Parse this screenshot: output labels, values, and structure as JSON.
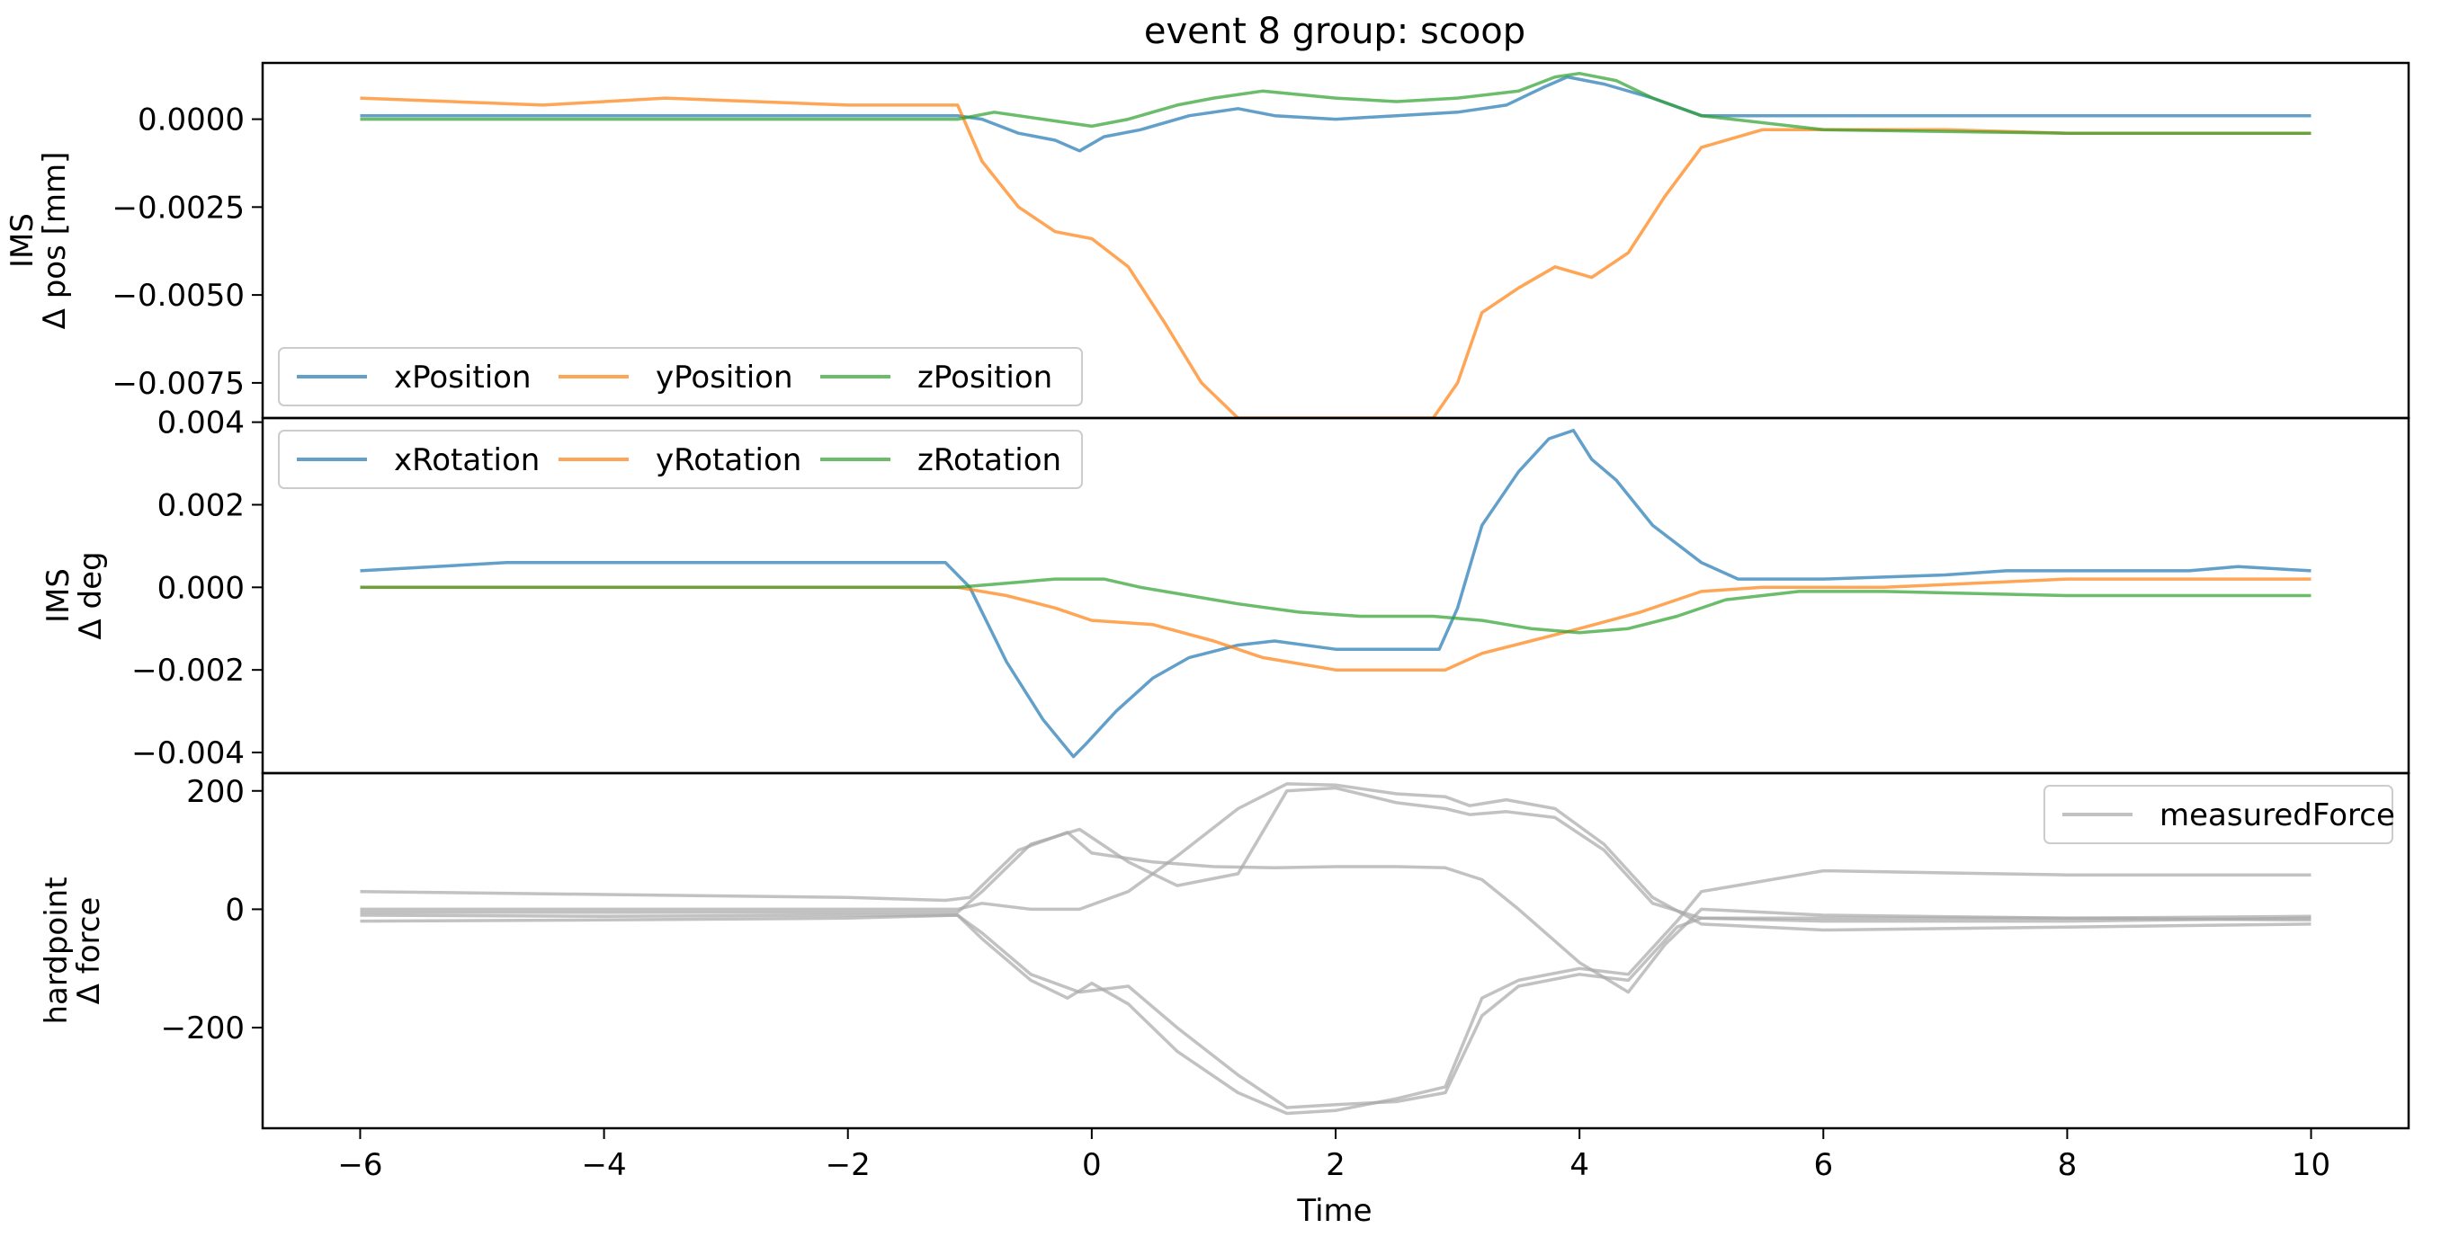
{
  "figure_title": "event 8 group: scoop",
  "chart_data": [
    {
      "type": "line",
      "id": "ims-position",
      "ylabel_lines": [
        "IMS",
        "Δ pos [mm]"
      ],
      "xlabel": "",
      "xlim": [
        -6.8,
        10.8
      ],
      "ylim": [
        -0.0085,
        0.0016
      ],
      "yticks": [
        0.0,
        -0.0025,
        -0.005,
        -0.0075
      ],
      "ytick_labels": [
        "0.0000",
        "−0.0025",
        "−0.0050",
        "−0.0075"
      ],
      "grid": false,
      "legend": {
        "position": "lower-left",
        "columns": 3
      },
      "series": [
        {
          "name": "xPosition",
          "color": "#1f77b4",
          "x": [
            -6,
            -1.1,
            -0.9,
            -0.6,
            -0.3,
            -0.1,
            0.1,
            0.4,
            0.8,
            1.2,
            1.5,
            2.0,
            2.5,
            3.0,
            3.4,
            3.7,
            3.9,
            4.2,
            4.6,
            5.0,
            6.0,
            8.0,
            10.0
          ],
          "y": [
            0.0001,
            0.0001,
            0.0,
            -0.0004,
            -0.0006,
            -0.0009,
            -0.0005,
            -0.0003,
            0.0001,
            0.0003,
            0.0001,
            0.0,
            0.0001,
            0.0002,
            0.0004,
            0.0009,
            0.0012,
            0.001,
            0.0006,
            0.0001,
            0.0001,
            0.0001,
            0.0001
          ]
        },
        {
          "name": "yPosition",
          "color": "#ff7f0e",
          "x": [
            -6,
            -4.5,
            -3.5,
            -2.0,
            -1.1,
            -0.9,
            -0.6,
            -0.3,
            0.0,
            0.3,
            0.6,
            0.9,
            1.2,
            1.5,
            2.0,
            2.5,
            2.8,
            3.0,
            3.2,
            3.5,
            3.8,
            4.1,
            4.4,
            4.7,
            5.0,
            5.5,
            6.0,
            7.0,
            8.0,
            10.0
          ],
          "y": [
            0.0006,
            0.0004,
            0.0006,
            0.0004,
            0.0004,
            -0.0012,
            -0.0025,
            -0.0032,
            -0.0034,
            -0.0042,
            -0.0058,
            -0.0075,
            -0.0085,
            -0.0085,
            -0.0085,
            -0.0085,
            -0.0085,
            -0.0075,
            -0.0055,
            -0.0048,
            -0.0042,
            -0.0045,
            -0.0038,
            -0.0022,
            -0.0008,
            -0.0003,
            -0.0003,
            -0.0003,
            -0.0004,
            -0.0004
          ]
        },
        {
          "name": "zPosition",
          "color": "#2ca02c",
          "x": [
            -6,
            -3.0,
            -1.1,
            -0.8,
            -0.4,
            0.0,
            0.3,
            0.7,
            1.0,
            1.4,
            2.0,
            2.5,
            3.0,
            3.5,
            3.8,
            4.0,
            4.3,
            4.6,
            5.0,
            6.0,
            8.0,
            10.0
          ],
          "y": [
            0.0,
            0.0,
            0.0,
            0.0002,
            0.0,
            -0.0002,
            0.0,
            0.0004,
            0.0006,
            0.0008,
            0.0006,
            0.0005,
            0.0006,
            0.0008,
            0.0012,
            0.0013,
            0.0011,
            0.0006,
            0.0001,
            -0.0003,
            -0.0004,
            -0.0004
          ]
        }
      ]
    },
    {
      "type": "line",
      "id": "ims-rotation",
      "ylabel_lines": [
        "IMS",
        "Δ deg"
      ],
      "xlabel": "",
      "xlim": [
        -6.8,
        10.8
      ],
      "ylim": [
        -0.0045,
        0.0041
      ],
      "yticks": [
        0.004,
        0.002,
        0.0,
        -0.002,
        -0.004
      ],
      "ytick_labels": [
        "0.004",
        "0.002",
        "0.000",
        "−0.002",
        "−0.004"
      ],
      "grid": false,
      "legend": {
        "position": "upper-left",
        "columns": 3
      },
      "series": [
        {
          "name": "xRotation",
          "color": "#1f77b4",
          "x": [
            -6,
            -4.8,
            -2.8,
            -1.2,
            -1.0,
            -0.7,
            -0.4,
            -0.15,
            -0.05,
            0.2,
            0.5,
            0.8,
            1.2,
            1.5,
            2.0,
            2.5,
            2.85,
            3.0,
            3.2,
            3.5,
            3.75,
            3.95,
            4.1,
            4.3,
            4.6,
            5.0,
            5.3,
            6.0,
            7.0,
            7.5,
            9.0,
            9.4,
            10.0
          ],
          "y": [
            0.0004,
            0.0006,
            0.0006,
            0.0006,
            0.0,
            -0.0018,
            -0.0032,
            -0.0041,
            -0.0038,
            -0.003,
            -0.0022,
            -0.0017,
            -0.0014,
            -0.0013,
            -0.0015,
            -0.0015,
            -0.0015,
            -0.0005,
            0.0015,
            0.0028,
            0.0036,
            0.0038,
            0.0031,
            0.0026,
            0.0015,
            0.0006,
            0.0002,
            0.0002,
            0.0003,
            0.0004,
            0.0004,
            0.0005,
            0.0004
          ]
        },
        {
          "name": "yRotation",
          "color": "#ff7f0e",
          "x": [
            -6,
            -2.0,
            -1.1,
            -0.7,
            -0.3,
            0.0,
            0.5,
            1.0,
            1.4,
            2.0,
            2.5,
            2.9,
            3.2,
            3.6,
            4.0,
            4.5,
            5.0,
            5.5,
            6.5,
            8.0,
            10.0
          ],
          "y": [
            0.0,
            0.0,
            0.0,
            -0.0002,
            -0.0005,
            -0.0008,
            -0.0009,
            -0.0013,
            -0.0017,
            -0.002,
            -0.002,
            -0.002,
            -0.0016,
            -0.0013,
            -0.001,
            -0.0006,
            -0.0001,
            0.0,
            0.0,
            0.0002,
            0.0002
          ]
        },
        {
          "name": "zRotation",
          "color": "#2ca02c",
          "x": [
            -6,
            -1.1,
            -0.7,
            -0.3,
            0.1,
            0.4,
            0.8,
            1.2,
            1.7,
            2.2,
            2.8,
            3.2,
            3.6,
            4.0,
            4.4,
            4.8,
            5.2,
            5.8,
            6.5,
            8.0,
            10.0
          ],
          "y": [
            0.0,
            0.0,
            0.0001,
            0.0002,
            0.0002,
            0.0,
            -0.0002,
            -0.0004,
            -0.0006,
            -0.0007,
            -0.0007,
            -0.0008,
            -0.001,
            -0.0011,
            -0.001,
            -0.0007,
            -0.0003,
            -0.0001,
            -0.0001,
            -0.0002,
            -0.0002
          ]
        }
      ]
    },
    {
      "type": "line",
      "id": "hardpoint-force",
      "ylabel_lines": [
        "hardpoint",
        "Δ force"
      ],
      "xlabel": "Time",
      "xlim": [
        -6.8,
        10.8
      ],
      "ylim": [
        -370,
        230
      ],
      "yticks": [
        200,
        0,
        -200
      ],
      "ytick_labels": [
        "200",
        "0",
        "−200"
      ],
      "xticks": [
        -6,
        -4,
        -2,
        0,
        2,
        4,
        6,
        8,
        10
      ],
      "xtick_labels": [
        "−6",
        "−4",
        "−2",
        "0",
        "2",
        "4",
        "6",
        "8",
        "10"
      ],
      "grid": false,
      "legend": {
        "position": "upper-right",
        "columns": 1,
        "entries": [
          "measuredForce"
        ]
      },
      "series": [
        {
          "name": "measuredForce",
          "color": "#a8a8a8",
          "x": [
            -6,
            -4,
            -2,
            -1.2,
            -1.0,
            -0.6,
            -0.2,
            0.0,
            0.5,
            1.0,
            1.5,
            2.0,
            2.5,
            2.9,
            3.2,
            3.5,
            4.0,
            4.4,
            4.7,
            5.0,
            6.0,
            8.0,
            10.0
          ],
          "y": [
            30,
            25,
            20,
            15,
            20,
            100,
            130,
            95,
            80,
            72,
            70,
            72,
            72,
            70,
            50,
            0,
            -90,
            -140,
            -60,
            0,
            -10,
            -15,
            -18
          ]
        },
        {
          "name": "",
          "color": "#a8a8a8",
          "x": [
            -6,
            -4,
            -2,
            -1.1,
            -0.9,
            -0.5,
            -0.1,
            0.3,
            0.7,
            1.2,
            1.6,
            2.0,
            2.5,
            2.9,
            3.1,
            3.4,
            3.8,
            4.2,
            4.6,
            5.0,
            6.0,
            8.0,
            10.0
          ],
          "y": [
            0,
            0,
            0,
            0,
            10,
            0,
            0,
            30,
            90,
            170,
            212,
            210,
            195,
            190,
            175,
            185,
            170,
            110,
            20,
            -25,
            -35,
            -30,
            -25
          ]
        },
        {
          "name": "",
          "color": "#a8a8a8",
          "x": [
            -6,
            -4,
            -2,
            -1.1,
            -0.9,
            -0.5,
            -0.2,
            0.0,
            0.3,
            0.7,
            1.2,
            1.6,
            2.0,
            2.5,
            2.9,
            3.2,
            3.5,
            4.0,
            4.4,
            4.8,
            5.0,
            6.0,
            8.0,
            10.0
          ],
          "y": [
            -20,
            -18,
            -15,
            -10,
            -50,
            -120,
            -150,
            -125,
            -160,
            -240,
            -310,
            -345,
            -340,
            -320,
            -300,
            -150,
            -120,
            -100,
            -110,
            -20,
            30,
            65,
            58,
            58
          ]
        },
        {
          "name": "",
          "color": "#a8a8a8",
          "x": [
            -6,
            -4,
            -2,
            -1.1,
            -0.9,
            -0.5,
            -0.1,
            0.3,
            0.7,
            1.2,
            1.6,
            2.0,
            2.5,
            2.9,
            3.1,
            3.4,
            3.8,
            4.2,
            4.6,
            5.0,
            6.0,
            8.0,
            10.0
          ],
          "y": [
            -5,
            -5,
            -5,
            -5,
            30,
            110,
            135,
            80,
            40,
            60,
            200,
            205,
            180,
            170,
            160,
            165,
            155,
            100,
            10,
            -15,
            -20,
            -20,
            -15
          ]
        },
        {
          "name": "",
          "color": "#a8a8a8",
          "x": [
            -6,
            -4,
            -2,
            -1.1,
            -0.9,
            -0.5,
            -0.1,
            0.3,
            0.7,
            1.2,
            1.6,
            2.0,
            2.5,
            2.9,
            3.2,
            3.5,
            4.0,
            4.4,
            4.8,
            5.0,
            6.0,
            8.0,
            10.0
          ],
          "y": [
            -10,
            -12,
            -10,
            -10,
            -40,
            -110,
            -140,
            -130,
            -200,
            -280,
            -335,
            -330,
            -325,
            -310,
            -180,
            -130,
            -110,
            -120,
            -30,
            -15,
            -15,
            -15,
            -12
          ]
        }
      ]
    }
  ]
}
